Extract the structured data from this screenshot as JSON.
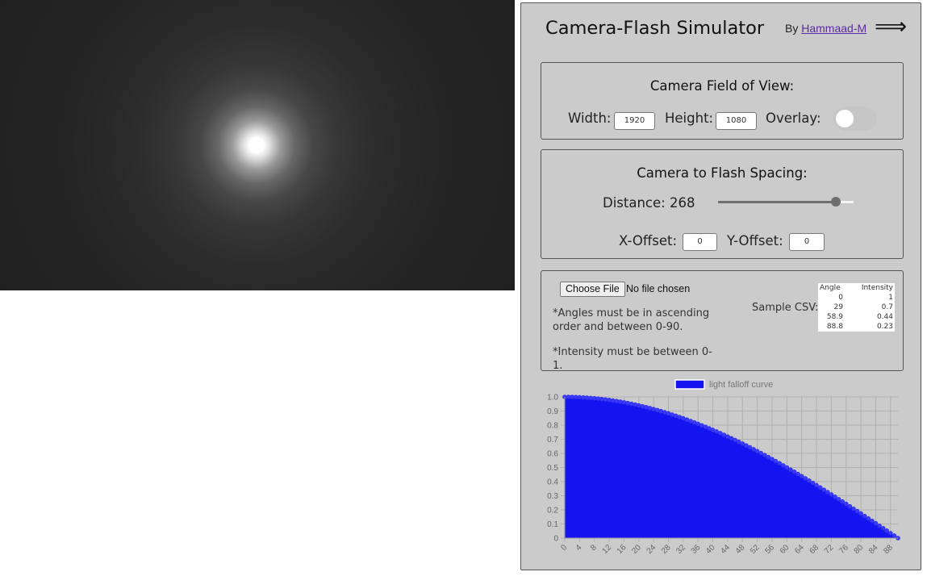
{
  "app": {
    "title": "Camera-Flash Simulator",
    "byline_prefix": "By",
    "author_link": "Hammaad-M",
    "menu_icon": "long-right-arrow-icon"
  },
  "fov": {
    "title": "Camera Field of View:",
    "width_label": "Width:",
    "width_value": "1920",
    "height_label": "Height:",
    "height_value": "1080",
    "overlay_label": "Overlay:",
    "overlay_on": false
  },
  "spacing": {
    "title": "Camera to Flash Spacing:",
    "distance_label": "Distance:",
    "distance_value": "268",
    "distance_fraction": 0.87,
    "x_offset_label": "X-Offset:",
    "x_offset_value": "0",
    "y_offset_label": "Y-Offset:",
    "y_offset_value": "0"
  },
  "csv": {
    "choose_file_label": "Choose File",
    "file_status": "No file chosen",
    "note_angles": "*Angles must be in ascending order and between 0-90.",
    "note_intensity": "*Intensity must be between 0-1.",
    "sample_label": "Sample CSV:",
    "sample_headers": [
      "Angle",
      "Intensity"
    ],
    "sample_rows": [
      [
        "0",
        "1"
      ],
      [
        "29",
        "0.7"
      ],
      [
        "58.9",
        "0.44"
      ],
      [
        "88.8",
        "0.23"
      ]
    ]
  },
  "colors": {
    "accent": "#1414f0",
    "panel_bg": "#cbcbcb"
  },
  "chart_data": {
    "type": "area",
    "series": [
      {
        "name": "light falloff curve",
        "values": "cos(angle) sampled every 1 degree from 0 to 90"
      }
    ],
    "x_ticks": [
      "0",
      "4",
      "8",
      "12",
      "16",
      "20",
      "24",
      "28",
      "32",
      "36",
      "40",
      "44",
      "48",
      "52",
      "56",
      "60",
      "64",
      "68",
      "72",
      "76",
      "80",
      "84",
      "88"
    ],
    "y_ticks": [
      "0",
      "0.1",
      "0.2",
      "0.3",
      "0.4",
      "0.5",
      "0.6",
      "0.7",
      "0.8",
      "0.9",
      "1.0"
    ],
    "xlim": [
      0,
      90
    ],
    "ylim": [
      0,
      1
    ],
    "x_step": 1,
    "grid": true,
    "legend": "top"
  }
}
